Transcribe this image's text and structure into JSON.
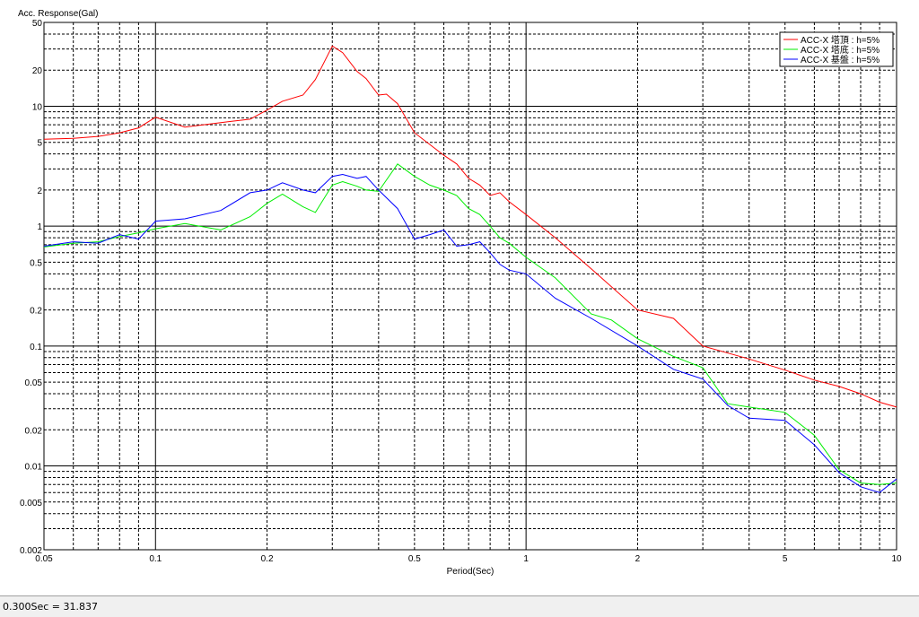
{
  "chart_data": {
    "type": "line",
    "title": "",
    "ylabel": "Acc. Response(Gal)",
    "xlabel": "Period(Sec)",
    "x_scale": "log",
    "y_scale": "log",
    "xlim": [
      0.05,
      10
    ],
    "ylim": [
      0.002,
      50
    ],
    "x_ticks": [
      0.05,
      0.1,
      0.2,
      0.5,
      1,
      2,
      5,
      10
    ],
    "x_tick_labels": [
      "0.05",
      "0.1",
      "0.2",
      "0.5",
      "1",
      "2",
      "5",
      "10"
    ],
    "y_ticks": [
      0.002,
      0.005,
      0.01,
      0.02,
      0.05,
      0.1,
      0.2,
      0.5,
      1,
      2,
      5,
      10,
      20,
      50
    ],
    "y_tick_labels": [
      "0.002",
      "0.005",
      "0.01",
      "0.02",
      "0.05",
      "0.1",
      "0.2",
      "0.5",
      "1",
      "2",
      "5",
      "10",
      "20",
      "50"
    ],
    "grid": true,
    "legend_position": "top-right",
    "series": [
      {
        "name": "ACC-X 塔頂 : h=5%",
        "color": "#ff0000",
        "x": [
          0.05,
          0.06,
          0.07,
          0.08,
          0.09,
          0.1,
          0.12,
          0.15,
          0.18,
          0.2,
          0.22,
          0.25,
          0.27,
          0.3,
          0.32,
          0.35,
          0.37,
          0.4,
          0.42,
          0.45,
          0.5,
          0.55,
          0.6,
          0.65,
          0.7,
          0.75,
          0.8,
          0.85,
          0.9,
          1.0,
          1.2,
          1.5,
          2.0,
          2.5,
          3.0,
          4.0,
          5.0,
          6.0,
          7.0,
          8.0,
          9.0,
          10.0
        ],
        "y": [
          5.3,
          5.4,
          5.6,
          6.0,
          6.6,
          8.1,
          6.7,
          7.3,
          7.8,
          9.3,
          11.0,
          12.4,
          16.7,
          31.8,
          28.0,
          19.5,
          17.0,
          12.4,
          12.6,
          10.5,
          6.0,
          4.8,
          3.9,
          3.3,
          2.5,
          2.2,
          1.8,
          1.9,
          1.6,
          1.25,
          0.8,
          0.44,
          0.2,
          0.17,
          0.1,
          0.078,
          0.063,
          0.052,
          0.046,
          0.04,
          0.034,
          0.031
        ]
      },
      {
        "name": "ACC-X 塔底 : h=5%",
        "color": "#00ee00",
        "x": [
          0.05,
          0.06,
          0.07,
          0.08,
          0.09,
          0.1,
          0.12,
          0.15,
          0.18,
          0.2,
          0.22,
          0.25,
          0.27,
          0.3,
          0.32,
          0.35,
          0.37,
          0.4,
          0.45,
          0.5,
          0.55,
          0.6,
          0.65,
          0.7,
          0.75,
          0.8,
          0.85,
          0.9,
          1.0,
          1.2,
          1.5,
          1.7,
          2.0,
          2.5,
          3.0,
          3.5,
          4.0,
          5.0,
          6.0,
          7.0,
          8.0,
          9.0,
          10.0
        ],
        "y": [
          0.67,
          0.72,
          0.74,
          0.82,
          0.88,
          0.95,
          1.05,
          0.93,
          1.2,
          1.55,
          1.85,
          1.45,
          1.3,
          2.2,
          2.35,
          2.15,
          2.0,
          1.95,
          3.3,
          2.6,
          2.2,
          2.0,
          1.8,
          1.4,
          1.25,
          1.0,
          0.8,
          0.72,
          0.55,
          0.37,
          0.185,
          0.165,
          0.115,
          0.082,
          0.066,
          0.033,
          0.031,
          0.028,
          0.018,
          0.0093,
          0.0072,
          0.007,
          0.0072
        ]
      },
      {
        "name": "ACC-X 基盤 : h=5%",
        "color": "#0000ff",
        "x": [
          0.05,
          0.06,
          0.07,
          0.08,
          0.09,
          0.1,
          0.12,
          0.15,
          0.18,
          0.2,
          0.22,
          0.25,
          0.27,
          0.3,
          0.32,
          0.35,
          0.37,
          0.4,
          0.45,
          0.5,
          0.55,
          0.6,
          0.65,
          0.7,
          0.75,
          0.8,
          0.85,
          0.9,
          1.0,
          1.2,
          1.5,
          2.0,
          2.5,
          3.0,
          3.5,
          4.0,
          5.0,
          6.0,
          7.0,
          8.0,
          9.0,
          10.0
        ],
        "y": [
          0.68,
          0.74,
          0.72,
          0.85,
          0.78,
          1.1,
          1.15,
          1.35,
          1.9,
          2.0,
          2.3,
          2.0,
          1.9,
          2.6,
          2.7,
          2.5,
          2.6,
          2.0,
          1.4,
          0.78,
          0.85,
          0.93,
          0.68,
          0.7,
          0.74,
          0.6,
          0.48,
          0.43,
          0.4,
          0.25,
          0.17,
          0.1,
          0.064,
          0.053,
          0.032,
          0.025,
          0.024,
          0.015,
          0.0088,
          0.0067,
          0.006,
          0.0078
        ]
      }
    ]
  },
  "status_bar": {
    "readout": "0.300Sec = 31.837"
  }
}
